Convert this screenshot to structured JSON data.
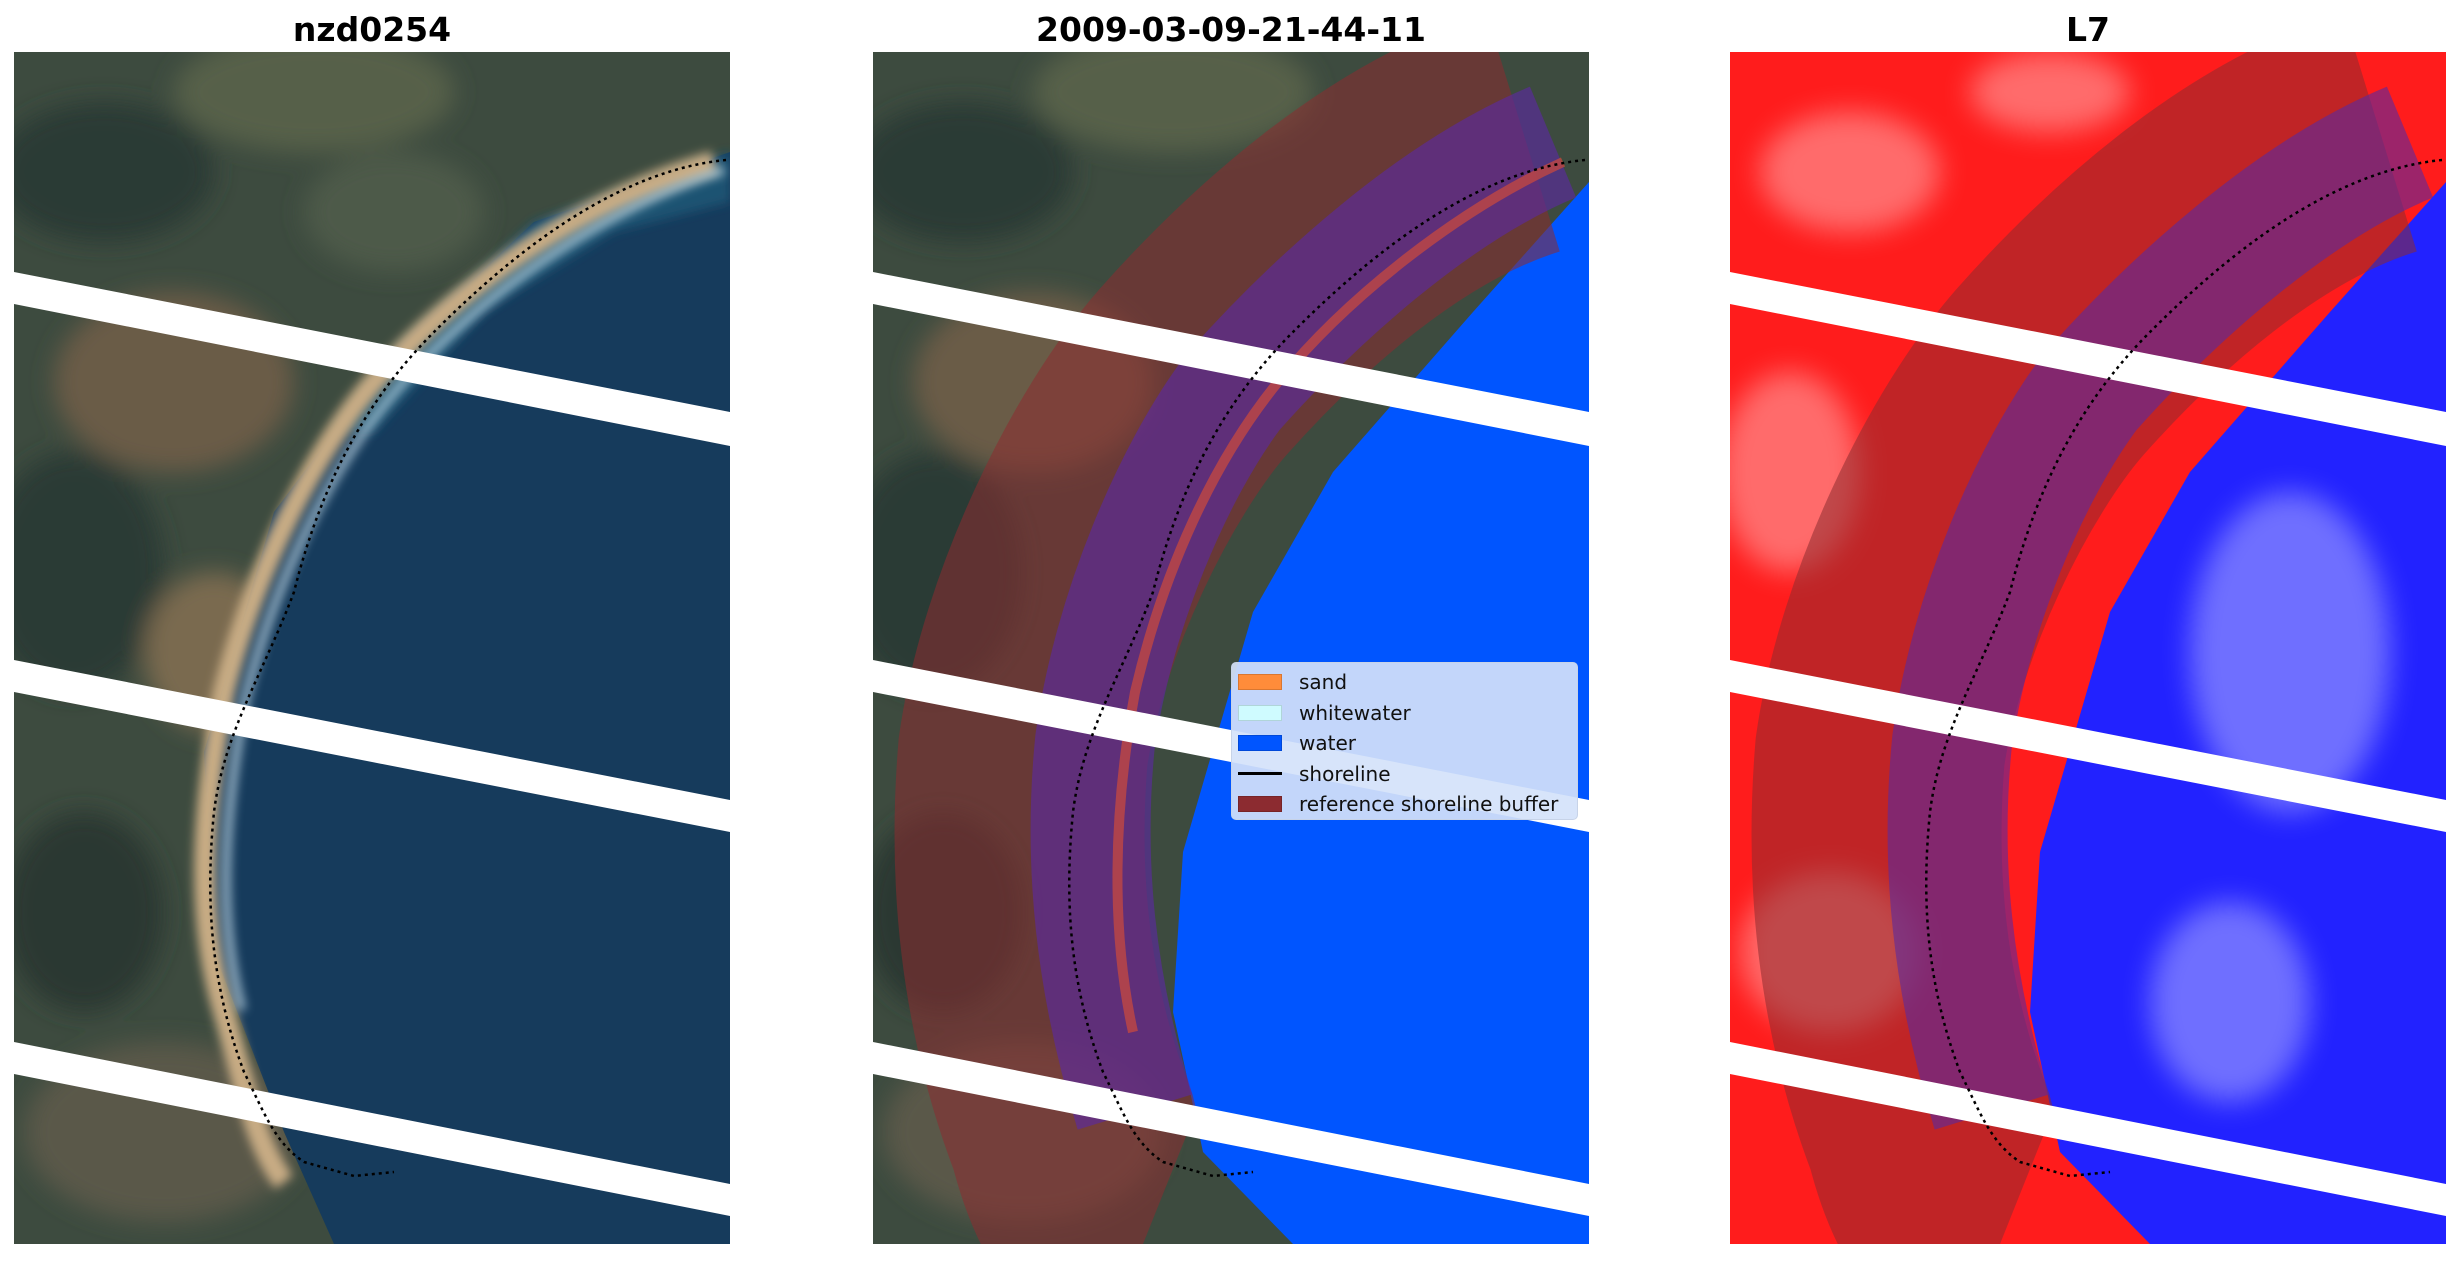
{
  "panels": [
    {
      "title": "nzd0254"
    },
    {
      "title": "2009-03-09-21-44-11"
    },
    {
      "title": "L7"
    }
  ],
  "legend": {
    "items": [
      {
        "label": "sand",
        "color": "#ff8c3a"
      },
      {
        "label": "whitewater",
        "color": "#cffbff"
      },
      {
        "label": "water",
        "color": "#0055ff"
      },
      {
        "label": "shoreline",
        "color": "#000000"
      },
      {
        "label": "reference shoreline buffer",
        "color": "#8c2b30"
      }
    ]
  },
  "colors": {
    "land_dark": "#3c4a3e",
    "land_brown": "#6a5a45",
    "sea": "#163b5c",
    "sand": "#c8ac84",
    "classified_water": "#0055ff",
    "classified_sand": "#cf4a3a",
    "buffer": "#8c2b30",
    "index_land": "#ff1c1c",
    "index_water": "#2222ff"
  }
}
